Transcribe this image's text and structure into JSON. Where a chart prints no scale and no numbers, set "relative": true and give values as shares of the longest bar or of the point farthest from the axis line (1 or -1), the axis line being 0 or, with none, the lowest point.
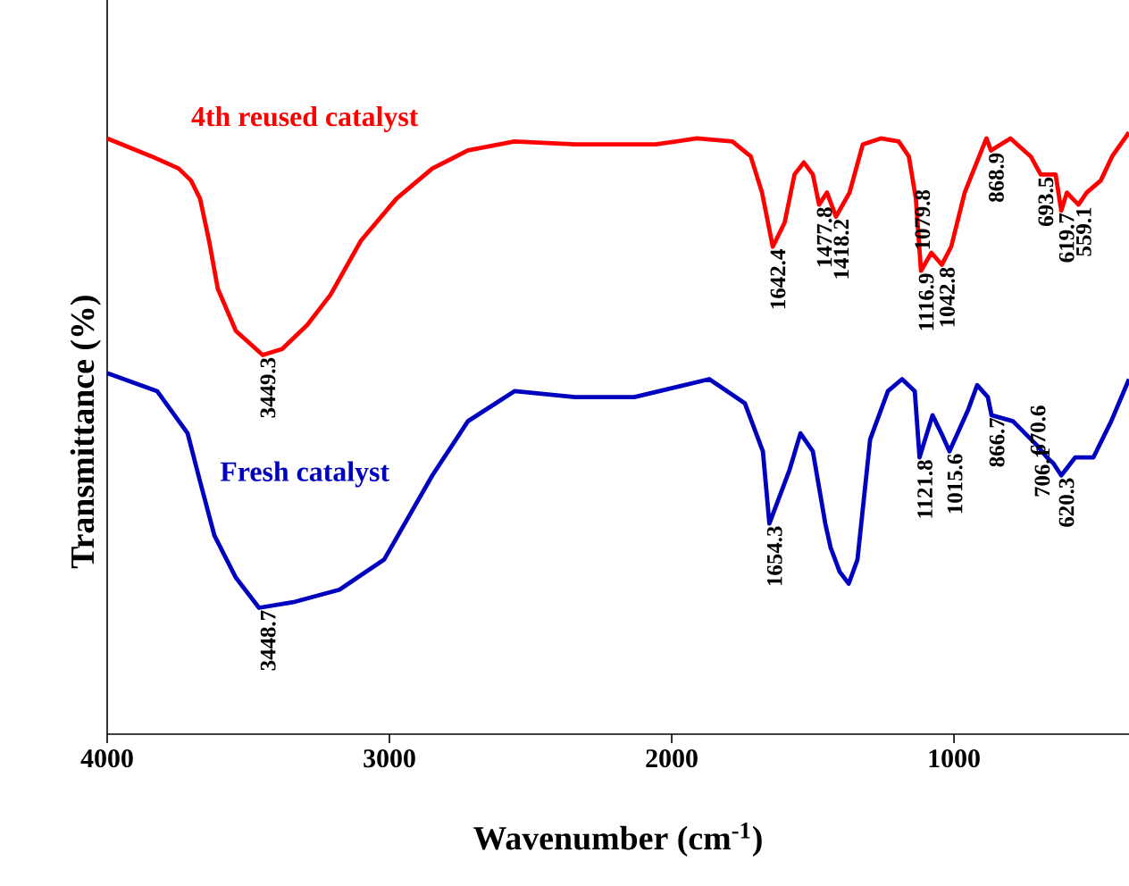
{
  "chart_data": {
    "type": "line",
    "relative": true,
    "xlabel": "Wavenumber (cm$^{-1}$)",
    "ylabel": "Transmittance (%)",
    "xlim": [
      4000,
      380
    ],
    "xticks": [
      4000,
      3000,
      2000,
      1000
    ],
    "marker": "none",
    "line_style": "solid",
    "series": [
      {
        "name": "4th reused catalyst",
        "color": "#ff0000",
        "x": [
          4000,
          3842,
          3747,
          3703,
          3671,
          3639,
          3608,
          3544,
          3449,
          3380,
          3291,
          3209,
          3101,
          2975,
          2848,
          2722,
          2557,
          2342,
          2133,
          2057,
          1911,
          1785,
          1720,
          1680,
          1642,
          1600,
          1565,
          1532,
          1500,
          1478,
          1450,
          1418,
          1370,
          1323,
          1259,
          1196,
          1160,
          1135,
          1117,
          1080,
          1043,
          1010,
          962,
          911,
          885,
          869,
          800,
          728,
          693,
          640,
          620,
          600,
          580,
          559,
          530,
          480,
          440,
          380
        ],
        "values": [
          0.99,
          0.96,
          0.94,
          0.92,
          0.89,
          0.82,
          0.74,
          0.67,
          0.63,
          0.64,
          0.68,
          0.73,
          0.82,
          0.89,
          0.94,
          0.97,
          0.985,
          0.98,
          0.98,
          0.98,
          0.99,
          0.985,
          0.96,
          0.9,
          0.81,
          0.85,
          0.93,
          0.95,
          0.93,
          0.88,
          0.9,
          0.86,
          0.9,
          0.98,
          0.99,
          0.985,
          0.96,
          0.89,
          0.77,
          0.8,
          0.78,
          0.81,
          0.9,
          0.96,
          0.99,
          0.97,
          0.99,
          0.96,
          0.93,
          0.93,
          0.87,
          0.9,
          0.89,
          0.88,
          0.9,
          0.92,
          0.96,
          1.0
        ]
      },
      {
        "name": "Fresh catalyst",
        "color": "#0000bf",
        "x": [
          4000,
          3823,
          3715,
          3671,
          3620,
          3544,
          3462,
          3335,
          3177,
          3019,
          2848,
          2722,
          2557,
          2342,
          2133,
          1867,
          1741,
          1677,
          1654,
          1582,
          1544,
          1500,
          1456,
          1437,
          1405,
          1373,
          1342,
          1297,
          1234,
          1184,
          1139,
          1122,
          1076,
          1045,
          1016,
          949,
          918,
          880,
          867,
          791,
          706,
          671,
          648,
          620,
          570,
          506,
          443,
          380
        ],
        "values": [
          0.6,
          0.57,
          0.5,
          0.42,
          0.33,
          0.26,
          0.21,
          0.22,
          0.24,
          0.29,
          0.43,
          0.52,
          0.57,
          0.56,
          0.56,
          0.59,
          0.55,
          0.47,
          0.35,
          0.44,
          0.5,
          0.47,
          0.35,
          0.31,
          0.27,
          0.25,
          0.29,
          0.49,
          0.57,
          0.59,
          0.57,
          0.46,
          0.53,
          0.5,
          0.47,
          0.54,
          0.58,
          0.56,
          0.53,
          0.52,
          0.48,
          0.46,
          0.45,
          0.43,
          0.46,
          0.46,
          0.52,
          0.59
        ]
      }
    ],
    "annotations": [
      {
        "text": "3449.3",
        "x": 3449.3,
        "y": 0.63
      },
      {
        "text": "1642.4",
        "x": 1642.4,
        "y": 0.81
      },
      {
        "text": "1477.8",
        "x": 1477.8,
        "y": 0.88
      },
      {
        "text": "1418.2",
        "x": 1418.2,
        "y": 0.86
      },
      {
        "text": "1116.9",
        "x": 1116.9,
        "y": 0.77
      },
      {
        "text": "1079.8",
        "x": 1079.8,
        "y": 0.8
      },
      {
        "text": "1042.8",
        "x": 1042.8,
        "y": 0.78
      },
      {
        "text": "868.9",
        "x": 868.9,
        "y": 0.97
      },
      {
        "text": "693.5",
        "x": 693.5,
        "y": 0.93
      },
      {
        "text": "619.7",
        "x": 619.7,
        "y": 0.87
      },
      {
        "text": "559.1",
        "x": 559.1,
        "y": 0.88
      },
      {
        "text": "3448.7",
        "x": 3448.7,
        "y": 0.21
      },
      {
        "text": "1654.3",
        "x": 1654.3,
        "y": 0.35
      },
      {
        "text": "1121.8",
        "x": 1121.8,
        "y": 0.46
      },
      {
        "text": "1015.6",
        "x": 1015.6,
        "y": 0.47
      },
      {
        "text": "866.7",
        "x": 866.7,
        "y": 0.53
      },
      {
        "text": "706.1",
        "x": 706.1,
        "y": 0.48
      },
      {
        "text": "670.6",
        "x": 670.6,
        "y": 0.46
      },
      {
        "text": "620.3",
        "x": 620.3,
        "y": 0.43
      }
    ]
  }
}
